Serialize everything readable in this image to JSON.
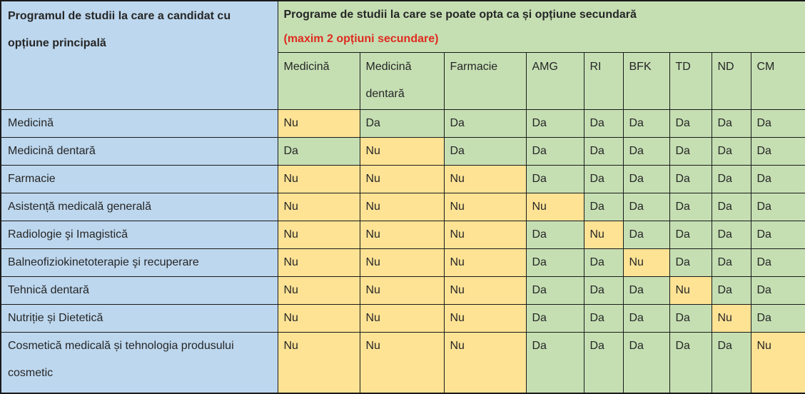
{
  "table": {
    "corner_header": "Programul de studii la care a candidat cu opțiune principală",
    "group_header": {
      "title": "Programe de studii la care se poate opta ca și opțiune secundară",
      "note": "(maxim 2 opțiuni secundare)"
    },
    "columns": [
      "Medicină",
      "Medicină dentară",
      "Farmacie",
      "AMG",
      "RI",
      "BFK",
      "TD",
      "ND",
      "CM"
    ],
    "rows": [
      {
        "label": "Medicină",
        "values": [
          "Nu",
          "Da",
          "Da",
          "Da",
          "Da",
          "Da",
          "Da",
          "Da",
          "Da"
        ]
      },
      {
        "label": "Medicină dentară",
        "values": [
          "Da",
          "Nu",
          "Da",
          "Da",
          "Da",
          "Da",
          "Da",
          "Da",
          "Da"
        ]
      },
      {
        "label": "Farmacie",
        "values": [
          "Nu",
          "Nu",
          "Nu",
          "Da",
          "Da",
          "Da",
          "Da",
          "Da",
          "Da"
        ]
      },
      {
        "label": "Asistență medicală generală",
        "values": [
          "Nu",
          "Nu",
          "Nu",
          "Nu",
          "Da",
          "Da",
          "Da",
          "Da",
          "Da"
        ]
      },
      {
        "label": "Radiologie şi Imagistică",
        "values": [
          "Nu",
          "Nu",
          "Nu",
          "Da",
          "Nu",
          "Da",
          "Da",
          "Da",
          "Da"
        ]
      },
      {
        "label": "Balneofiziokinetoterapie şi recuperare",
        "values": [
          "Nu",
          "Nu",
          "Nu",
          "Da",
          "Da",
          "Nu",
          "Da",
          "Da",
          "Da"
        ]
      },
      {
        "label": "Tehnică dentară",
        "values": [
          "Nu",
          "Nu",
          "Nu",
          "Da",
          "Da",
          "Da",
          "Nu",
          "Da",
          "Da"
        ]
      },
      {
        "label": "Nutriție și Dietetică",
        "values": [
          "Nu",
          "Nu",
          "Nu",
          "Da",
          "Da",
          "Da",
          "Da",
          "Nu",
          "Da"
        ]
      },
      {
        "label": "Cosmetică medicală și tehnologia produsului cosmetic",
        "values": [
          "Nu",
          "Nu",
          "Nu",
          "Da",
          "Da",
          "Da",
          "Da",
          "Da",
          "Nu"
        ]
      }
    ],
    "answer_yes": "Da",
    "answer_no": "Nu",
    "colors": {
      "label_bg": "#BDD7EE",
      "yes_bg": "#C5DFB3",
      "no_bg": "#FEE395",
      "note_red": "#E02B20",
      "border": "#1a1a1a",
      "text": "#262626"
    }
  }
}
